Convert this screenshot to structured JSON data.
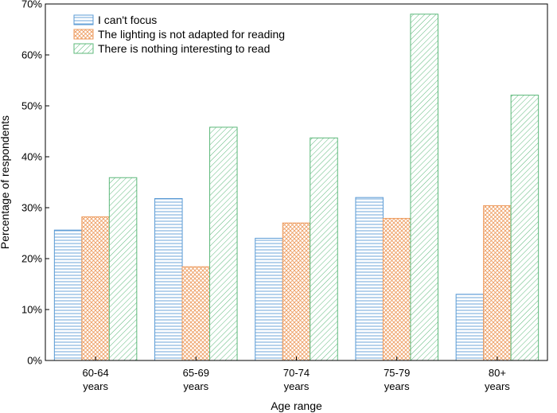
{
  "chart_data": {
    "type": "bar",
    "categories": [
      [
        "60-64",
        "years"
      ],
      [
        "65-69",
        "years"
      ],
      [
        "70-74",
        "years"
      ],
      [
        "75-79",
        "years"
      ],
      [
        "80+",
        "years"
      ]
    ],
    "series": [
      {
        "name": "I can't focus",
        "values": [
          25.6,
          31.8,
          24.0,
          32.0,
          13.0
        ],
        "color": "#5b9bd5",
        "pattern": "horizontal-lines"
      },
      {
        "name": "The lighting is not adapted for reading",
        "values": [
          28.2,
          18.4,
          27.0,
          27.9,
          30.4
        ],
        "color": "#ed9a5c",
        "pattern": "crosshatch"
      },
      {
        "name": "There is nothing interesting to read",
        "values": [
          35.9,
          45.8,
          43.7,
          68.0,
          52.1
        ],
        "color": "#5cb87a",
        "pattern": "diagonal-lines"
      }
    ],
    "xlabel": "Age range",
    "ylabel": "Percentage of respondents",
    "ylim": [
      0,
      70
    ],
    "yticks": [
      0,
      10,
      20,
      30,
      40,
      50,
      60,
      70
    ],
    "ytick_labels": [
      "0%",
      "10%",
      "20%",
      "30%",
      "40%",
      "50%",
      "60%",
      "70%"
    ],
    "grid": false,
    "legend_position": "top-left"
  }
}
